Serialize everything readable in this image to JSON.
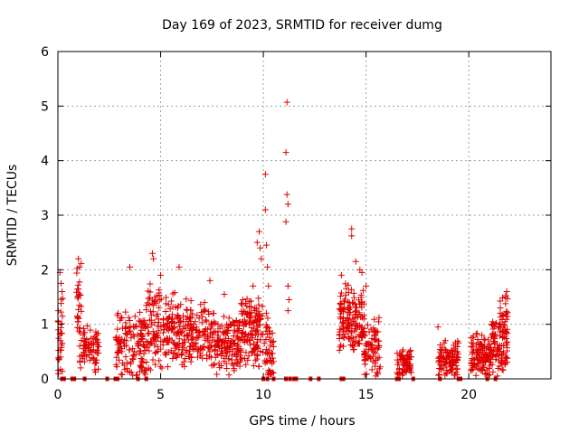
{
  "chart_data": {
    "type": "scatter",
    "title": "Day 169 of 2023, SRMTID for receiver dumg",
    "xlabel": "GPS time / hours",
    "ylabel": "SRMTID / TECUs",
    "xlim": [
      0,
      24
    ],
    "ylim": [
      0,
      6
    ],
    "xticks": [
      0,
      5,
      10,
      15,
      20
    ],
    "xtick_labels": [
      "0",
      "5",
      "10",
      "15",
      "20"
    ],
    "yticks": [
      0,
      1,
      2,
      3,
      4,
      5,
      6
    ],
    "ytick_labels": [
      "0",
      "1",
      "2",
      "3",
      "4",
      "5",
      "6"
    ],
    "grid": true,
    "legend": "none",
    "marker": "plus",
    "marker_color": "#e00000",
    "clusters": [
      {
        "x0": 0.0,
        "x1": 0.25,
        "y_base": 0.6,
        "y_spread": 0.9,
        "n": 30
      },
      {
        "x0": 0.9,
        "x1": 1.15,
        "y_base": 1.5,
        "y_spread": 0.7,
        "n": 25
      },
      {
        "x0": 1.0,
        "x1": 2.0,
        "y_base": 0.55,
        "y_spread": 0.5,
        "n": 80
      },
      {
        "x0": 2.8,
        "x1": 4.3,
        "y_base": 0.6,
        "y_spread": 0.8,
        "n": 140
      },
      {
        "x0": 4.3,
        "x1": 5.7,
        "y_base": 0.9,
        "y_spread": 0.9,
        "n": 140
      },
      {
        "x0": 5.7,
        "x1": 7.2,
        "y_base": 0.8,
        "y_spread": 0.7,
        "n": 150
      },
      {
        "x0": 7.2,
        "x1": 8.8,
        "y_base": 0.65,
        "y_spread": 0.6,
        "n": 160
      },
      {
        "x0": 8.8,
        "x1": 10.0,
        "y_base": 0.85,
        "y_spread": 0.7,
        "n": 140
      },
      {
        "x0": 10.0,
        "x1": 10.5,
        "y_base": 0.4,
        "y_spread": 0.9,
        "n": 50
      },
      {
        "x0": 13.7,
        "x1": 14.9,
        "y_base": 1.1,
        "y_spread": 0.7,
        "n": 150
      },
      {
        "x0": 14.9,
        "x1": 15.7,
        "y_base": 0.6,
        "y_spread": 0.6,
        "n": 80
      },
      {
        "x0": 16.5,
        "x1": 17.2,
        "y_base": 0.28,
        "y_spread": 0.3,
        "n": 70
      },
      {
        "x0": 18.5,
        "x1": 19.5,
        "y_base": 0.35,
        "y_spread": 0.4,
        "n": 100
      },
      {
        "x0": 20.1,
        "x1": 21.1,
        "y_base": 0.45,
        "y_spread": 0.45,
        "n": 120
      },
      {
        "x0": 21.1,
        "x1": 21.9,
        "y_base": 0.6,
        "y_spread": 0.6,
        "n": 90
      },
      {
        "x0": 21.5,
        "x1": 21.9,
        "y_base": 1.1,
        "y_spread": 0.5,
        "n": 25
      }
    ],
    "points": [
      [
        0.1,
        1.95
      ],
      [
        0.15,
        1.75
      ],
      [
        0.2,
        1.6
      ],
      [
        1.0,
        2.2
      ],
      [
        1.05,
        2.05
      ],
      [
        3.5,
        2.05
      ],
      [
        4.6,
        2.3
      ],
      [
        4.65,
        2.2
      ],
      [
        5.0,
        1.9
      ],
      [
        5.9,
        2.05
      ],
      [
        7.4,
        1.8
      ],
      [
        8.1,
        1.55
      ],
      [
        9.0,
        1.45
      ],
      [
        9.5,
        1.7
      ],
      [
        9.7,
        2.5
      ],
      [
        9.8,
        2.7
      ],
      [
        9.85,
        2.4
      ],
      [
        9.9,
        2.2
      ],
      [
        10.1,
        3.75
      ],
      [
        10.1,
        3.1
      ],
      [
        10.15,
        2.45
      ],
      [
        10.2,
        2.05
      ],
      [
        10.25,
        1.7
      ],
      [
        11.15,
        5.07
      ],
      [
        11.1,
        4.15
      ],
      [
        11.15,
        3.38
      ],
      [
        11.2,
        3.2
      ],
      [
        11.1,
        2.88
      ],
      [
        11.2,
        1.7
      ],
      [
        11.25,
        1.45
      ],
      [
        11.2,
        1.25
      ],
      [
        13.8,
        1.9
      ],
      [
        14.3,
        2.75
      ],
      [
        14.3,
        2.62
      ],
      [
        14.5,
        2.15
      ],
      [
        14.7,
        2.0
      ],
      [
        14.8,
        1.95
      ],
      [
        15.0,
        1.7
      ],
      [
        21.85,
        1.6
      ],
      [
        21.8,
        1.5
      ],
      [
        18.5,
        0.95
      ]
    ],
    "axis_markers_x": [
      0.2,
      0.3,
      0.7,
      0.8,
      1.3,
      2.4,
      2.8,
      2.9,
      3.9,
      4.3,
      10.0,
      10.2,
      10.5,
      11.1,
      11.3,
      11.5,
      11.6,
      12.3,
      12.7,
      13.8,
      13.9,
      16.5,
      16.6,
      17.3,
      18.6,
      19.5,
      19.6,
      20.9,
      21.3
    ]
  }
}
